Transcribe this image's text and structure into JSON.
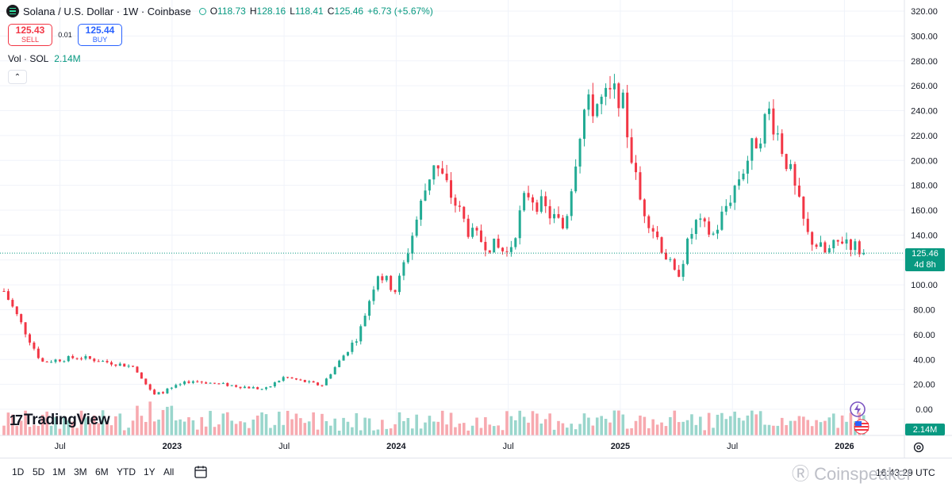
{
  "header": {
    "symbol_icon": "solana-logo-icon",
    "title": "Solana / U.S. Dollar · 1W · Coinbase",
    "ohlc": {
      "o_label": "O",
      "o": "118.73",
      "h_label": "H",
      "h": "128.16",
      "l_label": "L",
      "l": "118.41",
      "c_label": "C",
      "c": "125.46",
      "change": "+6.73 (+5.67%)"
    },
    "sell_price": "125.43",
    "sell_label": "SELL",
    "spread": "0.01",
    "buy_price": "125.44",
    "buy_label": "BUY",
    "vol_label": "Vol · SOL",
    "vol_value": "2.14M"
  },
  "price_tag": {
    "price": "125.46",
    "countdown": "4d 8h"
  },
  "volume_tag": "2.14M",
  "brand": "TradingView",
  "watermark": "Coinspeaker",
  "bottom_bar": {
    "ranges": [
      "1D",
      "5D",
      "1M",
      "3M",
      "6M",
      "YTD",
      "1Y",
      "All"
    ],
    "clock": "16:43:29 UTC"
  },
  "colors": {
    "up": "#22ab94",
    "down": "#f23645",
    "up_vol": "#9ad6cc",
    "down_vol": "#f7a9af",
    "accent": "#089981"
  },
  "chart_data": {
    "type": "candlestick",
    "y_ticks": [
      0,
      20,
      40,
      60,
      80,
      100,
      120,
      140,
      160,
      180,
      200,
      220,
      240,
      260,
      280,
      300,
      320
    ],
    "y_tick_labels": [
      "0.00",
      "20.00",
      "40.00",
      "60.00",
      "80.00",
      "100.00",
      "120.00",
      "140.00",
      "160.00",
      "180.00",
      "200.00",
      "220.00",
      "240.00",
      "260.00",
      "280.00",
      "300.00",
      "320.00"
    ],
    "ylim": [
      0,
      320
    ],
    "x_ticks": [
      {
        "date": "2022-07",
        "label": "Jul",
        "bold": false
      },
      {
        "date": "2023-01",
        "label": "2023",
        "bold": true
      },
      {
        "date": "2023-07",
        "label": "Jul",
        "bold": false
      },
      {
        "date": "2024-01",
        "label": "2024",
        "bold": true
      },
      {
        "date": "2024-07",
        "label": "Jul",
        "bold": false
      },
      {
        "date": "2025-01",
        "label": "2025",
        "bold": true
      },
      {
        "date": "2025-07",
        "label": "Jul",
        "bold": false
      },
      {
        "date": "2026-01",
        "label": "2026",
        "bold": true
      }
    ],
    "x_range": [
      "2022-04",
      "2026-02"
    ],
    "last_price": 125.46,
    "key_prices": [
      {
        "date": "2022-04",
        "price": 95
      },
      {
        "date": "2022-06",
        "price": 38
      },
      {
        "date": "2022-08",
        "price": 42
      },
      {
        "date": "2022-11",
        "price": 34
      },
      {
        "date": "2022-12",
        "price": 11
      },
      {
        "date": "2023-02",
        "price": 23
      },
      {
        "date": "2023-06",
        "price": 16
      },
      {
        "date": "2023-07",
        "price": 26
      },
      {
        "date": "2023-09",
        "price": 19
      },
      {
        "date": "2023-11",
        "price": 60
      },
      {
        "date": "2023-12",
        "price": 110
      },
      {
        "date": "2024-01",
        "price": 95
      },
      {
        "date": "2024-03",
        "price": 200
      },
      {
        "date": "2024-05",
        "price": 140
      },
      {
        "date": "2024-07",
        "price": 125
      },
      {
        "date": "2024-08",
        "price": 175
      },
      {
        "date": "2024-10",
        "price": 145
      },
      {
        "date": "2024-11",
        "price": 240
      },
      {
        "date": "2025-01",
        "price": 255
      },
      {
        "date": "2025-02",
        "price": 170
      },
      {
        "date": "2025-04",
        "price": 105
      },
      {
        "date": "2025-05",
        "price": 150
      },
      {
        "date": "2025-06",
        "price": 140
      },
      {
        "date": "2025-07",
        "price": 175
      },
      {
        "date": "2025-09",
        "price": 240
      },
      {
        "date": "2025-10",
        "price": 195
      },
      {
        "date": "2025-11",
        "price": 140
      },
      {
        "date": "2025-12",
        "price": 125
      },
      {
        "date": "2026-01",
        "price": 138
      },
      {
        "date": "2026-02",
        "price": 125.46
      }
    ],
    "grid": true
  }
}
